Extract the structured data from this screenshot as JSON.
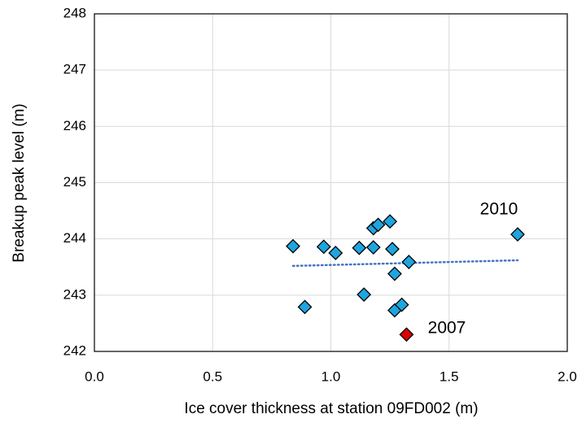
{
  "chart_data": {
    "type": "scatter",
    "x_label": "Ice cover thickness at station 09FD002 (m)",
    "y_label": "Breakup peak level (m)",
    "xlim": [
      0,
      2
    ],
    "ylim": [
      242,
      248
    ],
    "xticks": [
      {
        "value": 0,
        "label": "0.0"
      },
      {
        "value": 0.5,
        "label": "0.5"
      },
      {
        "value": 1,
        "label": "1.0"
      },
      {
        "value": 1.5,
        "label": "1.5"
      },
      {
        "value": 2,
        "label": "2.0"
      }
    ],
    "yticks": [
      242,
      243,
      244,
      245,
      246,
      247,
      248
    ],
    "grid": true,
    "series": [
      {
        "color": "#1ea5e0",
        "x": [
          0.84,
          0.89,
          0.97,
          1.02,
          1.12,
          1.14,
          1.18,
          1.18,
          1.2,
          1.25,
          1.26,
          1.27,
          1.27,
          1.3,
          1.33,
          1.79
        ],
        "values": [
          243.87,
          242.79,
          243.86,
          243.75,
          243.84,
          243.01,
          243.85,
          244.19,
          244.25,
          244.31,
          243.82,
          243.38,
          242.73,
          242.83,
          243.59,
          244.08
        ]
      },
      {
        "color": "#e00000",
        "x": [
          1.32
        ],
        "values": [
          242.3
        ]
      }
    ],
    "trendline": {
      "color": "#4472c4",
      "x": [
        0.84,
        1.79
      ],
      "values": [
        243.52,
        243.62
      ]
    },
    "annotations": [
      "2010",
      "2007"
    ]
  }
}
